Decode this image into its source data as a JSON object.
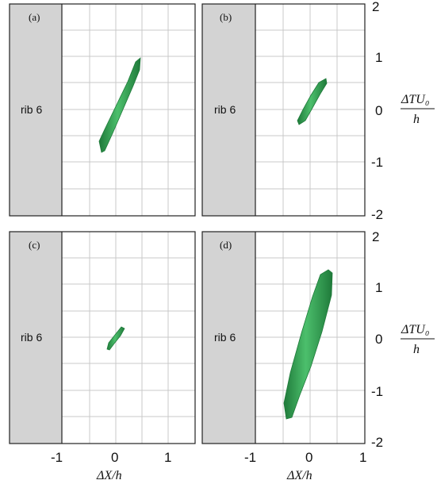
{
  "figure": {
    "panels": [
      {
        "id": "a",
        "label": "(a)",
        "rib_label": "rib 6"
      },
      {
        "id": "b",
        "label": "(b)",
        "rib_label": "rib 6"
      },
      {
        "id": "c",
        "label": "(c)",
        "rib_label": "rib 6"
      },
      {
        "id": "d",
        "label": "(d)",
        "rib_label": "rib 6"
      }
    ],
    "x_ticks": [
      "-1",
      "0",
      "1"
    ],
    "y_ticks": [
      "2",
      "1",
      "0",
      "-1",
      "-2"
    ],
    "x_axis_title": "ΔX/h",
    "y_axis_title_num": "ΔTU₀",
    "y_axis_title_den": "h",
    "colors": {
      "rib": "#d3d3d3",
      "grid": "#c8c8c8",
      "blob": "#3faa5a",
      "blob_edge": "#1f7a3a"
    }
  }
}
